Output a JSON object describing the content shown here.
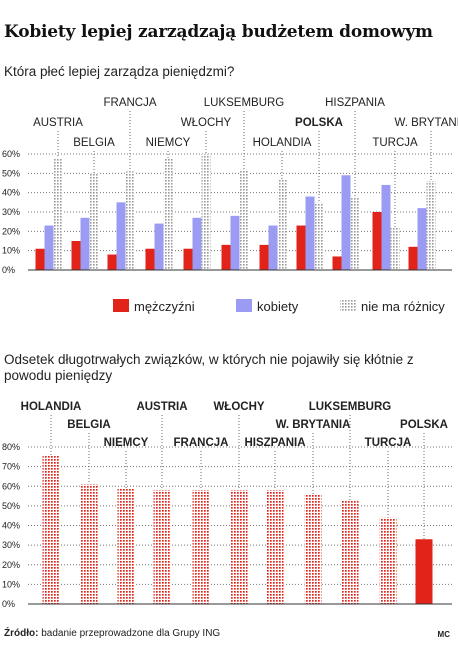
{
  "title": "Kobiety lepiej zarządzają budżetem domowym",
  "source_prefix": "Źródło:",
  "source_text": "badanie przeprowadzone dla Grupy ING",
  "credit": "MC",
  "colors": {
    "men": "#e2231a",
    "women": "#9b9bf4",
    "nodiff": "#9a9a9a",
    "red_dots": "#e2231a",
    "grid": "#777777"
  },
  "chart_data": [
    {
      "type": "bar",
      "title": "Która płeć lepiej zarządza pieniędzmi?",
      "xlabel": "",
      "ylabel": "",
      "ylim": [
        0,
        60
      ],
      "yticks": [
        "0%",
        "10%",
        "20%",
        "30%",
        "40%",
        "50%",
        "60%"
      ],
      "grid": true,
      "legend_position": "bottom",
      "categories": [
        "AUSTRIA",
        "BELGIA",
        "FRANCJA",
        "NIEMCY",
        "WŁOCHY",
        "LUKSEMBURG",
        "HOLANDIA",
        "POLSKA",
        "HISZPANIA",
        "TURCJA",
        "W. BRYTANIA"
      ],
      "highlight_category": "POLSKA",
      "series": [
        {
          "name": "mężczyźni",
          "values": [
            11,
            15,
            8,
            11,
            11,
            13,
            13,
            23,
            7,
            30,
            12
          ]
        },
        {
          "name": "kobiety",
          "values": [
            23,
            27,
            35,
            24,
            27,
            28,
            23,
            38,
            49,
            44,
            32
          ]
        },
        {
          "name": "nie ma różnicy",
          "values": [
            58,
            50,
            51,
            58,
            60,
            52,
            47,
            35,
            38,
            22,
            46
          ]
        }
      ]
    },
    {
      "type": "bar",
      "title": "Odsetek długotrwałych związków, w których nie pojawiły się kłótnie z powodu pieniędzy",
      "xlabel": "",
      "ylabel": "",
      "ylim": [
        0,
        80
      ],
      "yticks": [
        "0%",
        "10%",
        "20%",
        "30%",
        "40%",
        "50%",
        "60%",
        "70%",
        "80%"
      ],
      "grid": true,
      "categories": [
        "HOLANDIA",
        "BELGIA",
        "NIEMCY",
        "AUSTRIA",
        "FRANCJA",
        "WŁOCHY",
        "HISZPANIA",
        "W. BRYTANIA",
        "LUKSEMBURG",
        "TURCJA",
        "POLSKA"
      ],
      "highlight_category": "POLSKA",
      "values": [
        76,
        61,
        59,
        58,
        58,
        58,
        58,
        56,
        53,
        44,
        33
      ]
    }
  ]
}
